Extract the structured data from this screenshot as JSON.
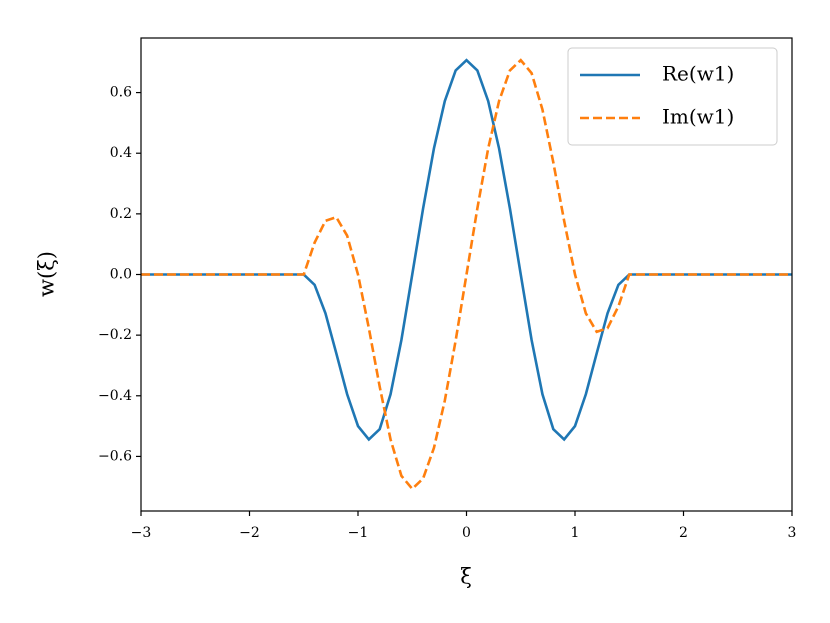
{
  "chart_data": {
    "type": "line",
    "xlabel": "ξ",
    "ylabel": "w(ξ)",
    "x": [
      -3,
      -1.5,
      -1.4,
      -1.3,
      -1.2,
      -1.1,
      -1.0,
      -0.9,
      -0.8,
      -0.7,
      -0.6,
      -0.5,
      -0.4,
      -0.3,
      -0.2,
      -0.1,
      0,
      0.1,
      0.2,
      0.3,
      0.4,
      0.5,
      0.6,
      0.7,
      0.8,
      0.9,
      1.0,
      1.1,
      1.2,
      1.3,
      1.4,
      1.5,
      3
    ],
    "series": [
      {
        "name": "Re(w1)",
        "color": "#1f77b4",
        "dash": false,
        "values": [
          0,
          0,
          -0.034,
          -0.128,
          -0.26,
          -0.395,
          -0.5,
          -0.544,
          -0.51,
          -0.395,
          -0.216,
          0,
          0.218,
          0.416,
          0.572,
          0.673,
          0.707,
          0.673,
          0.572,
          0.416,
          0.218,
          0,
          -0.216,
          -0.395,
          -0.51,
          -0.544,
          -0.5,
          -0.395,
          -0.26,
          -0.128,
          -0.034,
          0,
          0
        ]
      },
      {
        "name": "Im(w1)",
        "color": "#ff7f0e",
        "dash": true,
        "values": [
          0,
          0,
          0.105,
          0.177,
          0.189,
          0.128,
          0,
          -0.177,
          -0.37,
          -0.544,
          -0.664,
          -0.707,
          -0.673,
          -0.572,
          -0.416,
          -0.218,
          0,
          0.218,
          0.416,
          0.572,
          0.673,
          0.707,
          0.664,
          0.544,
          0.37,
          0.177,
          0,
          -0.128,
          -0.189,
          -0.177,
          -0.105,
          0,
          0
        ]
      }
    ],
    "xlim": [
      -3,
      3
    ],
    "xticks": [
      {
        "value": -3,
        "label": "−3"
      },
      {
        "value": -2,
        "label": "−2"
      },
      {
        "value": -1,
        "label": "−1"
      },
      0,
      1,
      2,
      3
    ],
    "ylim": [
      -0.78,
      0.78
    ],
    "yticks": [
      {
        "value": -0.6,
        "label": "−0.6"
      },
      {
        "value": -0.4,
        "label": "−0.4"
      },
      {
        "value": -0.2,
        "label": "−0.2"
      },
      {
        "value": 0,
        "label": "0.0"
      },
      0.2,
      0.4,
      0.6
    ],
    "grid": false,
    "legend": "upper right"
  }
}
